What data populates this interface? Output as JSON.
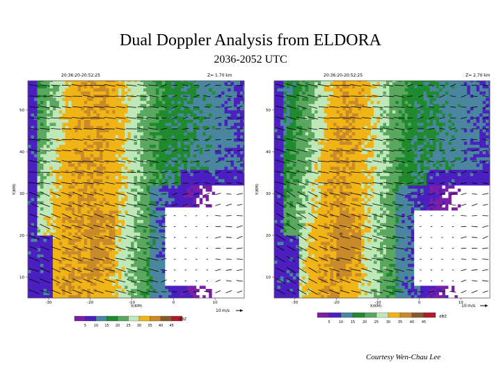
{
  "title": "Dual Doppler Analysis from ELDORA",
  "subtitle": "2036-2052 UTC",
  "credit": "Courtesy Wen-Chau Lee",
  "chart_data": [
    {
      "type": "heatmap",
      "time_label": "20:36:20-20:52:25",
      "height_label": "Z=  1.70 km",
      "xlabel": "X(KM)",
      "ylabel": "Y(KM)",
      "x_ticks": [
        "-30",
        "-20",
        "-10",
        "0",
        "10"
      ],
      "y_ticks": [
        "10",
        "20",
        "30",
        "40",
        "50"
      ],
      "xlim": [
        -35,
        17
      ],
      "ylim": [
        5,
        57
      ],
      "vector_scale_number": "10",
      "vector_scale_unit": "m/s",
      "max_reflectivity_band_x": [
        -30,
        -12
      ],
      "weak_echo_region_x": [
        -2,
        10
      ],
      "weak_echo_region_y": [
        8,
        27
      ]
    },
    {
      "type": "heatmap",
      "time_label": "20:36:20-20:52:25",
      "height_label": "Z=  2.70 km",
      "xlabel": "X(KM)",
      "ylabel": "Y(KM)",
      "x_ticks": [
        "-30",
        "-20",
        "-10",
        "0",
        "10"
      ],
      "y_ticks": [
        "10",
        "20",
        "30",
        "40",
        "50"
      ],
      "xlim": [
        -35,
        17
      ],
      "ylim": [
        5,
        57
      ],
      "vector_scale_number": "10",
      "vector_scale_unit": "m/s",
      "max_reflectivity_band_x": [
        -26,
        -12
      ],
      "weak_echo_region_x": [
        -1,
        9
      ],
      "weak_echo_region_y": [
        8,
        26
      ]
    }
  ],
  "colorbar": {
    "unit": "dBZ",
    "levels": [
      "5",
      "10",
      "15",
      "20",
      "25",
      "30",
      "35",
      "40",
      "45"
    ],
    "colors": [
      "#7a1fa6",
      "#4b1fc0",
      "#4a86a0",
      "#1f8a2e",
      "#5aa860",
      "#bfe8b8",
      "#f1b417",
      "#c98a2a",
      "#8a5a2e",
      "#b01b2e"
    ]
  }
}
